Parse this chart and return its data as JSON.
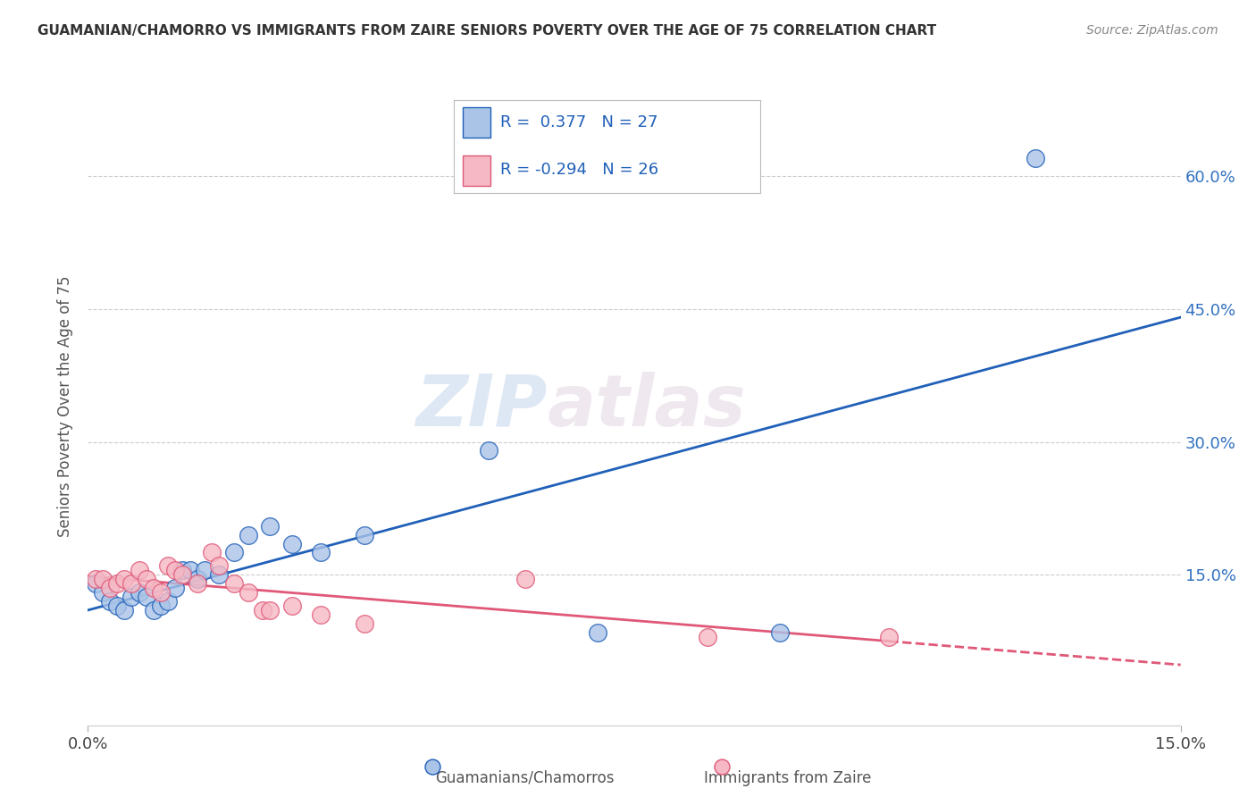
{
  "title": "GUAMANIAN/CHAMORRO VS IMMIGRANTS FROM ZAIRE SENIORS POVERTY OVER THE AGE OF 75 CORRELATION CHART",
  "source": "Source: ZipAtlas.com",
  "ylabel": "Seniors Poverty Over the Age of 75",
  "xlim": [
    0.0,
    0.15
  ],
  "ylim": [
    -0.02,
    0.7
  ],
  "yticks": [
    0.15,
    0.3,
    0.45,
    0.6
  ],
  "ytick_labels": [
    "15.0%",
    "30.0%",
    "45.0%",
    "60.0%"
  ],
  "r_blue": 0.377,
  "n_blue": 27,
  "r_pink": -0.294,
  "n_pink": 26,
  "blue_color": "#aac4e8",
  "pink_color": "#f5b8c4",
  "blue_line_color": "#2060b8",
  "pink_line_color": "#e05878",
  "watermark_zip": "ZIP",
  "watermark_atlas": "atlas",
  "legend_label_blue": "Guamanians/Chamorros",
  "legend_label_pink": "Immigrants from Zaire",
  "blue_x": [
    0.001,
    0.002,
    0.003,
    0.004,
    0.005,
    0.006,
    0.007,
    0.008,
    0.009,
    0.01,
    0.011,
    0.012,
    0.013,
    0.014,
    0.015,
    0.016,
    0.018,
    0.02,
    0.022,
    0.025,
    0.028,
    0.032,
    0.038,
    0.055,
    0.07,
    0.095,
    0.13
  ],
  "blue_y": [
    0.14,
    0.13,
    0.12,
    0.115,
    0.11,
    0.125,
    0.13,
    0.125,
    0.11,
    0.115,
    0.12,
    0.135,
    0.155,
    0.155,
    0.145,
    0.155,
    0.15,
    0.175,
    0.195,
    0.205,
    0.185,
    0.175,
    0.195,
    0.29,
    0.085,
    0.085,
    0.62
  ],
  "pink_x": [
    0.001,
    0.002,
    0.003,
    0.004,
    0.005,
    0.006,
    0.007,
    0.008,
    0.009,
    0.01,
    0.011,
    0.012,
    0.013,
    0.015,
    0.017,
    0.018,
    0.02,
    0.022,
    0.024,
    0.025,
    0.028,
    0.032,
    0.038,
    0.06,
    0.085,
    0.11
  ],
  "pink_y": [
    0.145,
    0.145,
    0.135,
    0.14,
    0.145,
    0.14,
    0.155,
    0.145,
    0.135,
    0.13,
    0.16,
    0.155,
    0.15,
    0.14,
    0.175,
    0.16,
    0.14,
    0.13,
    0.11,
    0.11,
    0.115,
    0.105,
    0.095,
    0.145,
    0.08,
    0.08
  ],
  "background_color": "#ffffff",
  "grid_color": "#cccccc"
}
